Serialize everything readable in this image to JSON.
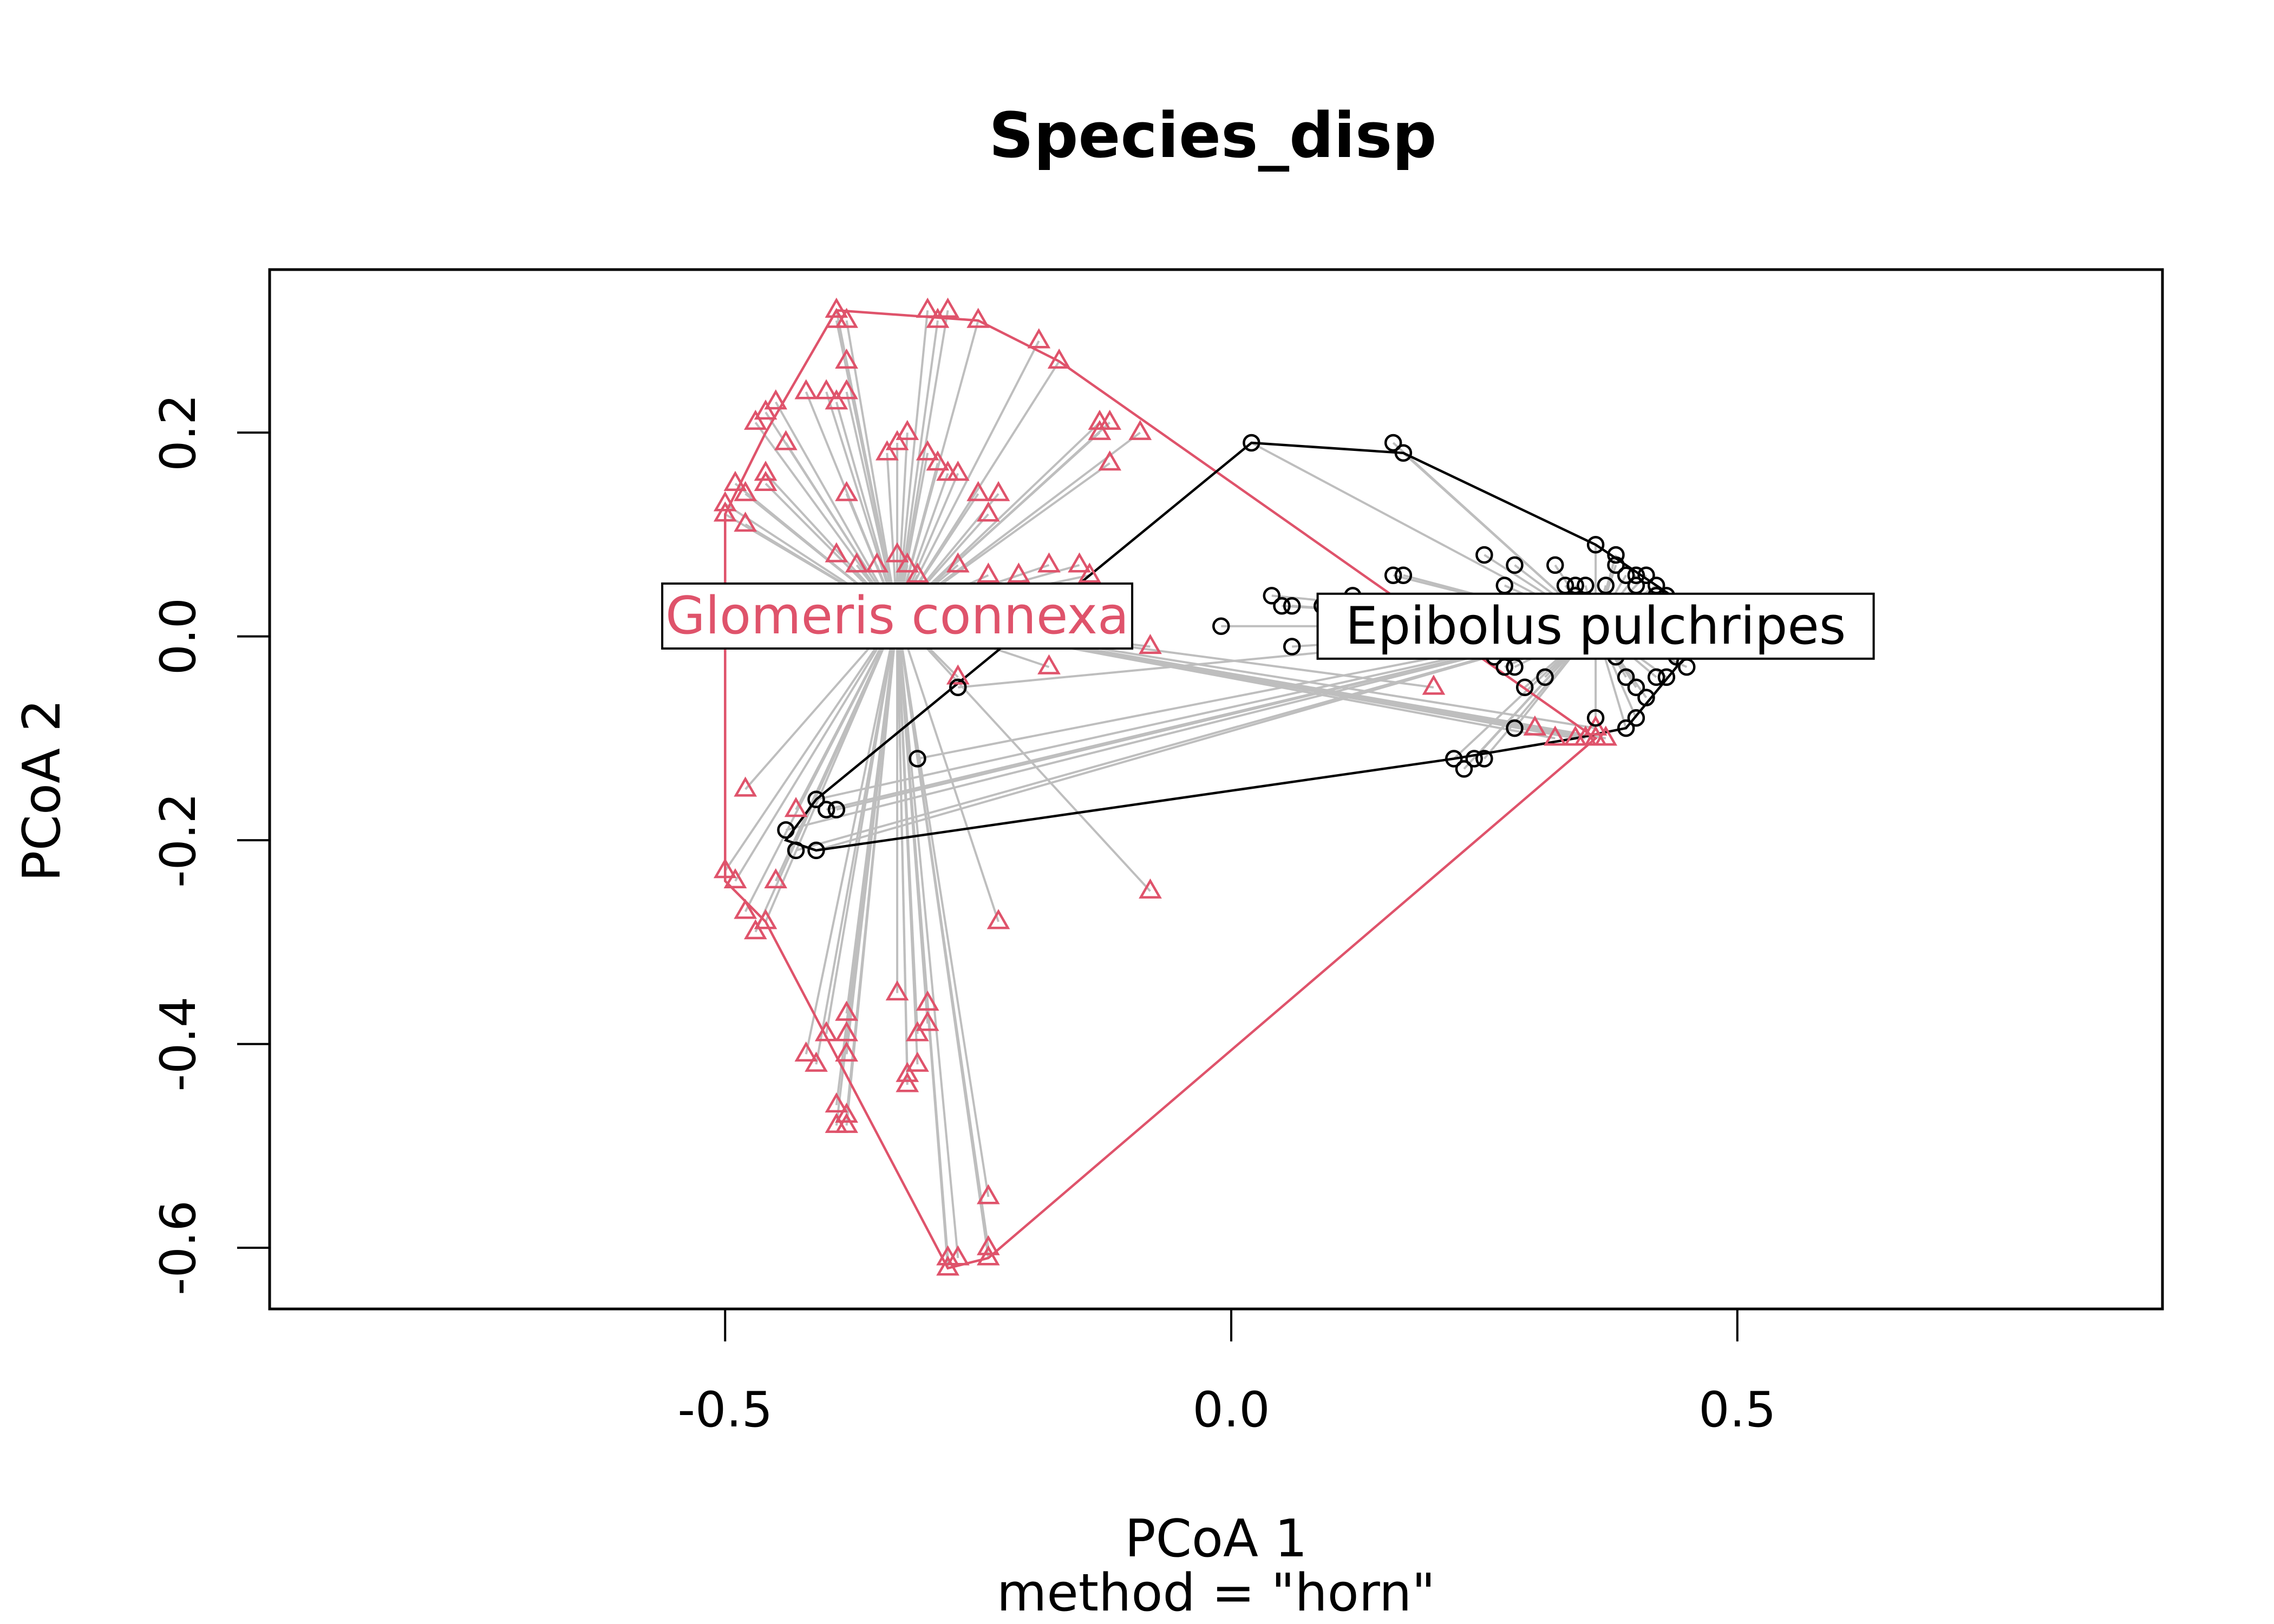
{
  "chart_data": {
    "type": "scatter",
    "title": "Species_disp",
    "xlabel": "PCoA 1",
    "sublabel": "method = \"horn\"",
    "ylabel": "PCoA 2",
    "xlim": [
      -0.95,
      0.92
    ],
    "ylim": [
      -0.66,
      0.36
    ],
    "x_ticks": [
      -0.5,
      0.0,
      0.5
    ],
    "x_tick_labels": [
      "-0.5",
      "0.0",
      "0.5"
    ],
    "y_ticks": [
      -0.6,
      -0.4,
      -0.2,
      0.0,
      0.2
    ],
    "y_tick_labels": [
      "-0.6",
      "-0.4",
      "-0.2",
      "0.0",
      "0.2"
    ],
    "grid": false,
    "spoke_color": "#BEBEBE",
    "series": [
      {
        "name": "Glomeris connexa",
        "color": "#DF536B",
        "marker": "triangle",
        "centroid": [
          -0.33,
          0.02
        ],
        "hull": [
          [
            -0.39,
            0.32
          ],
          [
            -0.25,
            0.31
          ],
          [
            -0.17,
            0.27
          ],
          [
            0.36,
            -0.1
          ],
          [
            -0.24,
            -0.61
          ],
          [
            -0.28,
            -0.62
          ],
          [
            -0.46,
            -0.28
          ],
          [
            -0.5,
            -0.24
          ],
          [
            -0.5,
            0.12
          ],
          [
            -0.46,
            0.2
          ]
        ],
        "points": [
          [
            -0.39,
            0.32
          ],
          [
            -0.39,
            0.31
          ],
          [
            -0.38,
            0.31
          ],
          [
            -0.3,
            0.32
          ],
          [
            -0.28,
            0.32
          ],
          [
            -0.29,
            0.31
          ],
          [
            -0.25,
            0.31
          ],
          [
            -0.19,
            0.29
          ],
          [
            -0.17,
            0.27
          ],
          [
            -0.38,
            0.27
          ],
          [
            -0.46,
            0.22
          ],
          [
            -0.45,
            0.23
          ],
          [
            -0.47,
            0.21
          ],
          [
            -0.42,
            0.24
          ],
          [
            -0.4,
            0.24
          ],
          [
            -0.38,
            0.24
          ],
          [
            -0.39,
            0.23
          ],
          [
            -0.13,
            0.21
          ],
          [
            -0.13,
            0.2
          ],
          [
            -0.12,
            0.21
          ],
          [
            -0.09,
            0.2
          ],
          [
            -0.44,
            0.19
          ],
          [
            -0.33,
            0.19
          ],
          [
            -0.32,
            0.2
          ],
          [
            -0.34,
            0.18
          ],
          [
            -0.3,
            0.18
          ],
          [
            -0.29,
            0.17
          ],
          [
            -0.28,
            0.16
          ],
          [
            -0.12,
            0.17
          ],
          [
            -0.46,
            0.16
          ],
          [
            -0.46,
            0.15
          ],
          [
            -0.49,
            0.15
          ],
          [
            -0.48,
            0.14
          ],
          [
            -0.38,
            0.14
          ],
          [
            -0.27,
            0.16
          ],
          [
            -0.25,
            0.14
          ],
          [
            -0.23,
            0.14
          ],
          [
            -0.24,
            0.12
          ],
          [
            -0.5,
            0.12
          ],
          [
            -0.5,
            0.13
          ],
          [
            -0.48,
            0.11
          ],
          [
            -0.39,
            0.08
          ],
          [
            -0.37,
            0.07
          ],
          [
            -0.35,
            0.07
          ],
          [
            -0.33,
            0.08
          ],
          [
            -0.32,
            0.07
          ],
          [
            -0.31,
            0.06
          ],
          [
            -0.27,
            0.07
          ],
          [
            -0.24,
            0.06
          ],
          [
            -0.21,
            0.06
          ],
          [
            -0.18,
            0.07
          ],
          [
            -0.15,
            0.07
          ],
          [
            -0.14,
            0.06
          ],
          [
            -0.08,
            -0.01
          ],
          [
            -0.27,
            -0.04
          ],
          [
            -0.18,
            -0.03
          ],
          [
            0.2,
            -0.05
          ],
          [
            0.3,
            -0.09
          ],
          [
            0.32,
            -0.1
          ],
          [
            0.34,
            -0.1
          ],
          [
            0.35,
            -0.1
          ],
          [
            0.36,
            -0.1
          ],
          [
            0.37,
            -0.1
          ],
          [
            0.36,
            -0.09
          ],
          [
            -0.48,
            -0.15
          ],
          [
            -0.43,
            -0.17
          ],
          [
            -0.5,
            -0.23
          ],
          [
            -0.49,
            -0.24
          ],
          [
            -0.45,
            -0.24
          ],
          [
            -0.48,
            -0.27
          ],
          [
            -0.47,
            -0.29
          ],
          [
            -0.46,
            -0.28
          ],
          [
            -0.08,
            -0.25
          ],
          [
            -0.23,
            -0.28
          ],
          [
            -0.33,
            -0.35
          ],
          [
            -0.3,
            -0.36
          ],
          [
            -0.3,
            -0.38
          ],
          [
            -0.31,
            -0.39
          ],
          [
            -0.38,
            -0.37
          ],
          [
            -0.38,
            -0.39
          ],
          [
            -0.4,
            -0.39
          ],
          [
            -0.42,
            -0.41
          ],
          [
            -0.41,
            -0.42
          ],
          [
            -0.38,
            -0.41
          ],
          [
            -0.32,
            -0.43
          ],
          [
            -0.32,
            -0.44
          ],
          [
            -0.31,
            -0.42
          ],
          [
            -0.39,
            -0.46
          ],
          [
            -0.38,
            -0.47
          ],
          [
            -0.38,
            -0.48
          ],
          [
            -0.39,
            -0.48
          ],
          [
            -0.24,
            -0.55
          ],
          [
            -0.24,
            -0.6
          ],
          [
            -0.28,
            -0.61
          ],
          [
            -0.28,
            -0.62
          ],
          [
            -0.27,
            -0.61
          ],
          [
            -0.24,
            -0.61
          ]
        ]
      },
      {
        "name": "Epibolus pulchripes",
        "color": "#000000",
        "marker": "circle",
        "centroid": [
          0.36,
          0.01
        ],
        "hull": [
          [
            0.02,
            0.19
          ],
          [
            0.17,
            0.18
          ],
          [
            0.36,
            0.09
          ],
          [
            0.45,
            0.03
          ],
          [
            0.44,
            -0.03
          ],
          [
            0.39,
            -0.09
          ],
          [
            0.34,
            -0.1
          ],
          [
            0.22,
            -0.12
          ],
          [
            -0.41,
            -0.21
          ],
          [
            -0.44,
            -0.2
          ],
          [
            -0.41,
            -0.16
          ]
        ],
        "points": [
          [
            0.02,
            0.19
          ],
          [
            0.16,
            0.19
          ],
          [
            0.17,
            0.18
          ],
          [
            0.16,
            0.06
          ],
          [
            0.17,
            0.06
          ],
          [
            0.25,
            0.08
          ],
          [
            0.28,
            0.07
          ],
          [
            0.32,
            0.07
          ],
          [
            0.36,
            0.09
          ],
          [
            0.38,
            0.08
          ],
          [
            0.38,
            0.07
          ],
          [
            0.39,
            0.06
          ],
          [
            0.4,
            0.06
          ],
          [
            0.4,
            0.05
          ],
          [
            0.41,
            0.06
          ],
          [
            0.42,
            0.05
          ],
          [
            0.43,
            0.04
          ],
          [
            0.44,
            0.03
          ],
          [
            0.42,
            0.04
          ],
          [
            0.37,
            0.05
          ],
          [
            0.35,
            0.05
          ],
          [
            0.34,
            0.05
          ],
          [
            0.34,
            0.04
          ],
          [
            0.33,
            0.05
          ],
          [
            0.27,
            0.05
          ],
          [
            0.12,
            0.04
          ],
          [
            0.05,
            0.03
          ],
          [
            0.04,
            0.04
          ],
          [
            0.06,
            0.03
          ],
          [
            0.09,
            0.03
          ],
          [
            0.11,
            0.03
          ],
          [
            0.13,
            0.02
          ],
          [
            -0.01,
            0.01
          ],
          [
            0.06,
            -0.01
          ],
          [
            0.24,
            0.0
          ],
          [
            0.22,
            -0.01
          ],
          [
            0.26,
            -0.02
          ],
          [
            0.28,
            -0.03
          ],
          [
            0.31,
            -0.04
          ],
          [
            0.38,
            -0.02
          ],
          [
            0.39,
            -0.04
          ],
          [
            0.4,
            -0.05
          ],
          [
            0.42,
            -0.04
          ],
          [
            0.43,
            -0.04
          ],
          [
            0.45,
            -0.03
          ],
          [
            0.44,
            -0.02
          ],
          [
            0.41,
            -0.06
          ],
          [
            0.4,
            -0.08
          ],
          [
            0.39,
            -0.09
          ],
          [
            0.36,
            -0.08
          ],
          [
            0.29,
            -0.05
          ],
          [
            0.27,
            -0.03
          ],
          [
            0.28,
            -0.09
          ],
          [
            0.25,
            -0.12
          ],
          [
            0.24,
            -0.12
          ],
          [
            0.22,
            -0.12
          ],
          [
            0.23,
            -0.13
          ],
          [
            -0.31,
            -0.12
          ],
          [
            -0.27,
            -0.05
          ],
          [
            -0.41,
            -0.16
          ],
          [
            -0.4,
            -0.17
          ],
          [
            -0.39,
            -0.17
          ],
          [
            -0.44,
            -0.19
          ],
          [
            -0.43,
            -0.21
          ],
          [
            -0.41,
            -0.21
          ]
        ]
      }
    ]
  }
}
